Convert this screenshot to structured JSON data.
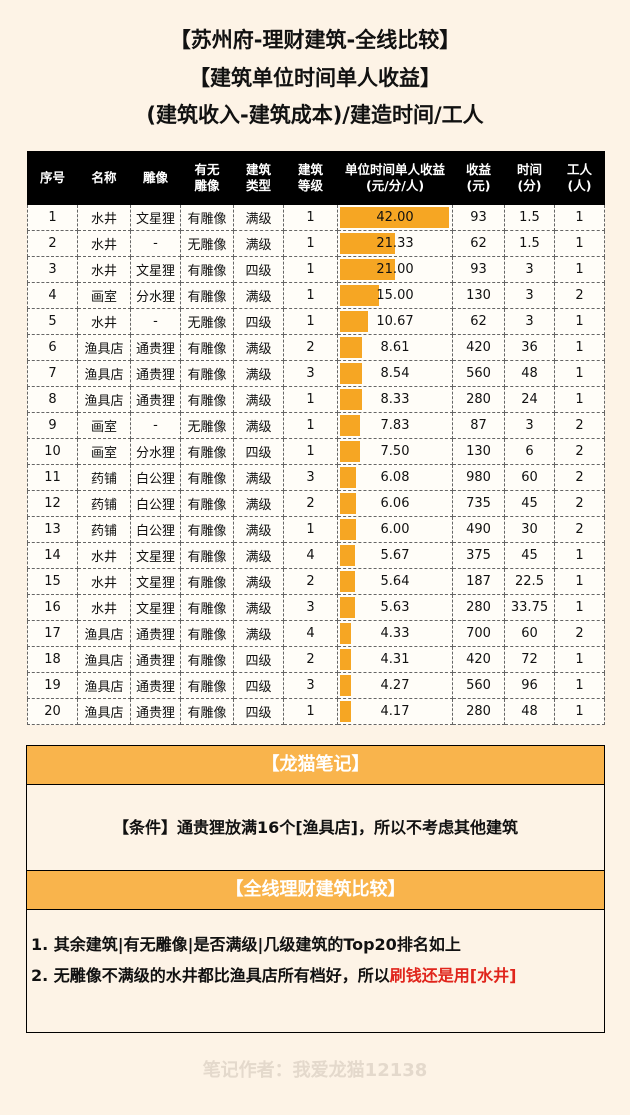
{
  "titles": {
    "line1": "【苏州府-理财建筑-全线比较】",
    "line2": "【建筑单位时间单人收益】",
    "line3": "(建筑收入-建筑成本)/建造时间/工人"
  },
  "table": {
    "headers": [
      "序号",
      "名称",
      "雕像",
      "有无\n雕像",
      "建筑\n类型",
      "建筑\n等级",
      "单位时间单人收益\n(元/分/人)",
      "收益\n(元)",
      "时间\n(分)",
      "工人\n(人)"
    ],
    "rows": [
      [
        "1",
        "水井",
        "文星狸",
        "有雕像",
        "满级",
        "1",
        "42.00",
        "93",
        "1.5",
        "1"
      ],
      [
        "2",
        "水井",
        "-",
        "无雕像",
        "满级",
        "1",
        "21.33",
        "62",
        "1.5",
        "1"
      ],
      [
        "3",
        "水井",
        "文星狸",
        "有雕像",
        "四级",
        "1",
        "21.00",
        "93",
        "3",
        "1"
      ],
      [
        "4",
        "画室",
        "分水狸",
        "有雕像",
        "满级",
        "1",
        "15.00",
        "130",
        "3",
        "2"
      ],
      [
        "5",
        "水井",
        "-",
        "无雕像",
        "四级",
        "1",
        "10.67",
        "62",
        "3",
        "1"
      ],
      [
        "6",
        "渔具店",
        "通贵狸",
        "有雕像",
        "满级",
        "2",
        "8.61",
        "420",
        "36",
        "1"
      ],
      [
        "7",
        "渔具店",
        "通贵狸",
        "有雕像",
        "满级",
        "3",
        "8.54",
        "560",
        "48",
        "1"
      ],
      [
        "8",
        "渔具店",
        "通贵狸",
        "有雕像",
        "满级",
        "1",
        "8.33",
        "280",
        "24",
        "1"
      ],
      [
        "9",
        "画室",
        "-",
        "无雕像",
        "满级",
        "1",
        "7.83",
        "87",
        "3",
        "2"
      ],
      [
        "10",
        "画室",
        "分水狸",
        "有雕像",
        "四级",
        "1",
        "7.50",
        "130",
        "6",
        "2"
      ],
      [
        "11",
        "药铺",
        "白公狸",
        "有雕像",
        "满级",
        "3",
        "6.08",
        "980",
        "60",
        "2"
      ],
      [
        "12",
        "药铺",
        "白公狸",
        "有雕像",
        "满级",
        "2",
        "6.06",
        "735",
        "45",
        "2"
      ],
      [
        "13",
        "药铺",
        "白公狸",
        "有雕像",
        "满级",
        "1",
        "6.00",
        "490",
        "30",
        "2"
      ],
      [
        "14",
        "水井",
        "文星狸",
        "有雕像",
        "满级",
        "4",
        "5.67",
        "375",
        "45",
        "1"
      ],
      [
        "15",
        "水井",
        "文星狸",
        "有雕像",
        "满级",
        "2",
        "5.64",
        "187",
        "22.5",
        "1"
      ],
      [
        "16",
        "水井",
        "文星狸",
        "有雕像",
        "满级",
        "3",
        "5.63",
        "280",
        "33.75",
        "1"
      ],
      [
        "17",
        "渔具店",
        "通贵狸",
        "有雕像",
        "满级",
        "4",
        "4.33",
        "700",
        "60",
        "2"
      ],
      [
        "18",
        "渔具店",
        "通贵狸",
        "有雕像",
        "四级",
        "2",
        "4.31",
        "420",
        "72",
        "1"
      ],
      [
        "19",
        "渔具店",
        "通贵狸",
        "有雕像",
        "四级",
        "3",
        "4.27",
        "560",
        "96",
        "1"
      ],
      [
        "20",
        "渔具店",
        "通贵狸",
        "有雕像",
        "四级",
        "1",
        "4.17",
        "280",
        "48",
        "1"
      ]
    ],
    "bar_color": "#f6a623",
    "bar_max": 42
  },
  "notes": {
    "header1": "【龙猫笔记】",
    "condition": "【条件】通贵狸放满16个[渔具店]，所以不考虑其他建筑",
    "header2": "【全线理财建筑比较】",
    "point1": "1. 其余建筑|有无雕像|是否满级|几级建筑的Top20排名如上",
    "point2_prefix": "2. 无雕像不满级的水井都比渔具店所有档好，所以",
    "point2_highlight": "刷钱还是用[水井]",
    "accent_color": "#f9b44c",
    "highlight_color": "#e0251c"
  },
  "footer": "笔记作者：我爱龙猫12138"
}
